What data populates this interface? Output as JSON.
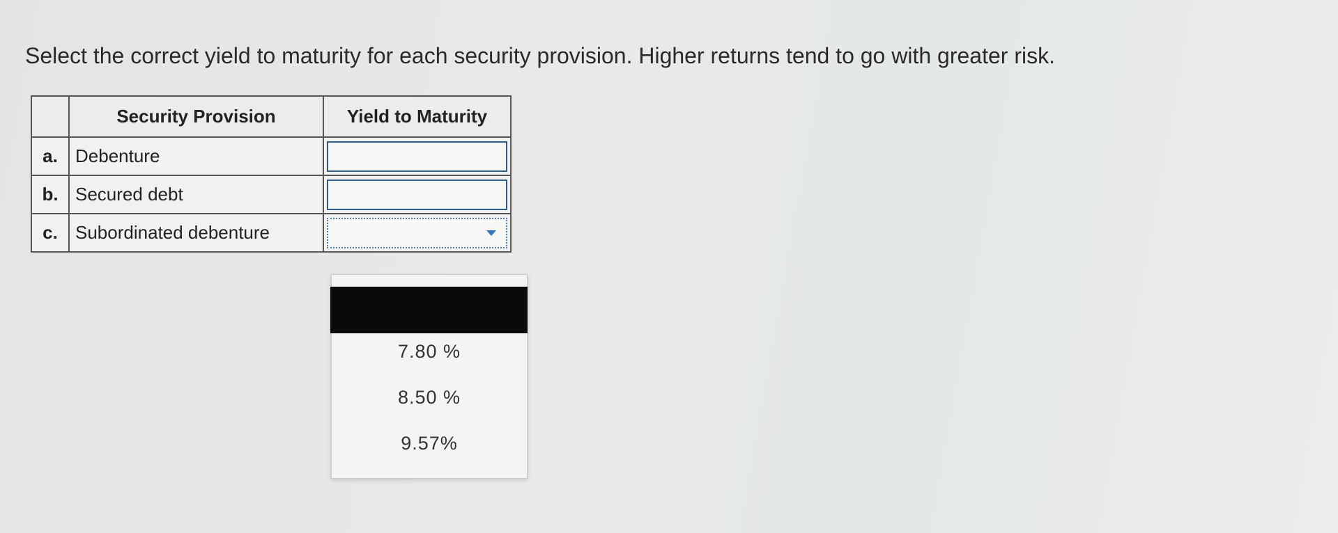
{
  "instruction": "Select the correct yield to maturity for each security provision. Higher returns tend to go with greater risk.",
  "table": {
    "headers": [
      "Security Provision",
      "Yield to Maturity"
    ],
    "rows": [
      [
        "a.",
        "Debenture"
      ],
      [
        "b.",
        "Secured debt"
      ],
      [
        "c.",
        "Subordinated debenture"
      ]
    ]
  },
  "dropdown": {
    "options": [
      "7.80 %",
      "8.50 %",
      "9.57%"
    ]
  }
}
